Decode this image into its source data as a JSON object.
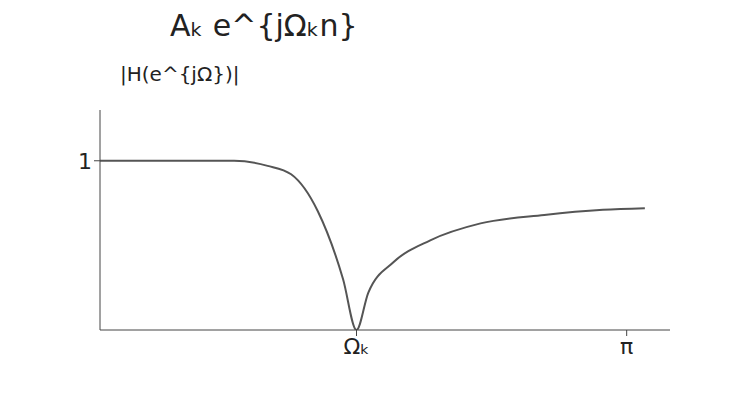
{
  "chart_data": {
    "type": "line",
    "title": "Aₖ e^{jΩₖn}",
    "y_label": "|H(e^{jΩ})|",
    "x": [
      0,
      0.4,
      0.8,
      1.0,
      1.14,
      1.3,
      1.45,
      1.53,
      1.6,
      1.75,
      1.97,
      2.27,
      2.65,
      3.0,
      3.25
    ],
    "series": [
      {
        "name": "|H(e^{jΩ})|",
        "color": "#555555",
        "values": [
          1,
          1,
          1,
          0.97,
          0.92,
          0.7,
          0.3,
          0,
          0.22,
          0.4,
          0.53,
          0.63,
          0.68,
          0.71,
          0.72
        ]
      }
    ],
    "xlim": [
      0,
      3.4
    ],
    "ylim": [
      0,
      1.3
    ],
    "xticks": [
      {
        "value": 1.53,
        "label": "Ωₖ"
      },
      {
        "value": 3.1416,
        "label": "π"
      }
    ],
    "yticks": [
      1
    ],
    "grid": false
  }
}
